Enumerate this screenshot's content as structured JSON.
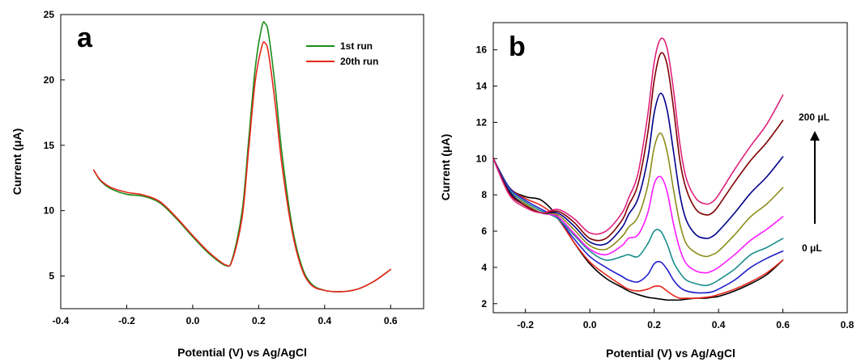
{
  "chart_data": [
    {
      "type": "line",
      "panel_label": "a",
      "xlabel": "Potential (V) vs Ag/AgCl",
      "ylabel": "Current (μA)",
      "xlim": [
        -0.4,
        0.7
      ],
      "ylim": [
        2.5,
        25
      ],
      "xticks": [
        -0.4,
        -0.2,
        0.0,
        0.2,
        0.4,
        0.6
      ],
      "xtick_labels": [
        "-0.4",
        "-0.2",
        "0.0",
        "0.2",
        "0.4",
        "0.6"
      ],
      "yticks": [
        5,
        10,
        15,
        20,
        25
      ],
      "ytick_labels": [
        "5",
        "10",
        "15",
        "20",
        "25"
      ],
      "grid": false,
      "legend_position": "top-right",
      "series": [
        {
          "name": "1st run",
          "color": "#1a8c1a",
          "x": [
            -0.3,
            -0.28,
            -0.25,
            -0.2,
            -0.15,
            -0.1,
            -0.05,
            0.0,
            0.05,
            0.1,
            0.12,
            0.15,
            0.17,
            0.19,
            0.21,
            0.22,
            0.23,
            0.25,
            0.27,
            0.3,
            0.33,
            0.36,
            0.4,
            0.45,
            0.5,
            0.55,
            0.6
          ],
          "y": [
            13.1,
            12.3,
            11.7,
            11.25,
            11.1,
            10.6,
            9.4,
            8.0,
            6.7,
            5.8,
            6.3,
            10.0,
            15.5,
            21.0,
            24.1,
            24.3,
            23.5,
            19.5,
            14.5,
            9.0,
            5.8,
            4.4,
            3.9,
            3.8,
            4.0,
            4.6,
            5.5
          ]
        },
        {
          "name": "20th run",
          "color": "#e8251b",
          "x": [
            -0.3,
            -0.28,
            -0.25,
            -0.2,
            -0.15,
            -0.1,
            -0.05,
            0.0,
            0.05,
            0.1,
            0.12,
            0.15,
            0.17,
            0.19,
            0.21,
            0.22,
            0.23,
            0.25,
            0.27,
            0.3,
            0.33,
            0.36,
            0.4,
            0.45,
            0.5,
            0.55,
            0.6
          ],
          "y": [
            13.1,
            12.35,
            11.8,
            11.4,
            11.2,
            10.7,
            9.5,
            8.1,
            6.8,
            5.85,
            6.2,
            9.5,
            14.8,
            20.0,
            22.6,
            22.8,
            22.0,
            18.2,
            13.6,
            8.6,
            5.6,
            4.3,
            3.9,
            3.8,
            4.0,
            4.6,
            5.5
          ]
        }
      ]
    },
    {
      "type": "line",
      "panel_label": "b",
      "xlabel": "Potential (V) vs Ag/AgCl",
      "ylabel": "Current (μA)",
      "xlim": [
        -0.3,
        0.8
      ],
      "ylim": [
        1.5,
        17.5
      ],
      "xticks": [
        -0.2,
        0.0,
        0.2,
        0.4,
        0.6,
        0.8
      ],
      "xtick_labels": [
        "-0.2",
        "0.0",
        "0.2",
        "0.4",
        "0.6",
        "0.8"
      ],
      "yticks": [
        2,
        4,
        6,
        8,
        10,
        12,
        14,
        16
      ],
      "ytick_labels": [
        "2",
        "4",
        "6",
        "8",
        "10",
        "12",
        "14",
        "16"
      ],
      "grid": false,
      "annotation_top": "200 μL",
      "annotation_bottom": "0 μL",
      "x": [
        -0.3,
        -0.25,
        -0.2,
        -0.15,
        -0.1,
        -0.05,
        0.0,
        0.05,
        0.1,
        0.12,
        0.15,
        0.18,
        0.2,
        0.22,
        0.24,
        0.26,
        0.28,
        0.3,
        0.33,
        0.36,
        0.38,
        0.4,
        0.45,
        0.5,
        0.55,
        0.6
      ],
      "series": [
        {
          "color": "#000000",
          "y": [
            10.0,
            8.4,
            7.9,
            7.7,
            6.8,
            5.4,
            4.2,
            3.4,
            2.9,
            2.7,
            2.5,
            2.35,
            2.3,
            2.25,
            2.2,
            2.2,
            2.2,
            2.25,
            2.3,
            2.3,
            2.35,
            2.4,
            2.7,
            3.1,
            3.6,
            4.4
          ]
        },
        {
          "color": "#e8251b",
          "y": [
            10.0,
            8.4,
            7.8,
            7.4,
            6.7,
            5.4,
            4.3,
            3.6,
            3.0,
            2.8,
            2.7,
            2.8,
            2.95,
            2.95,
            2.7,
            2.45,
            2.3,
            2.3,
            2.3,
            2.35,
            2.4,
            2.5,
            2.8,
            3.2,
            3.7,
            4.4
          ]
        },
        {
          "color": "#1f1fcc",
          "y": [
            10.0,
            8.4,
            7.7,
            7.2,
            6.7,
            5.6,
            4.6,
            4.0,
            3.5,
            3.3,
            3.2,
            3.6,
            4.2,
            4.3,
            3.9,
            3.3,
            2.9,
            2.7,
            2.6,
            2.6,
            2.65,
            2.8,
            3.3,
            4.0,
            4.5,
            4.9
          ]
        },
        {
          "color": "#1a8c8c",
          "y": [
            10.0,
            8.3,
            7.6,
            7.1,
            6.7,
            5.8,
            4.9,
            4.4,
            4.6,
            4.7,
            4.6,
            5.3,
            6.0,
            6.0,
            5.3,
            4.3,
            3.7,
            3.3,
            3.1,
            3.0,
            3.1,
            3.3,
            3.9,
            4.7,
            5.1,
            5.6
          ]
        },
        {
          "color": "#ff1aff",
          "y": [
            10.0,
            8.2,
            7.5,
            7.0,
            6.8,
            5.9,
            5.0,
            4.7,
            5.2,
            5.6,
            5.8,
            7.0,
            8.6,
            9.0,
            8.2,
            6.4,
            5.0,
            4.2,
            3.8,
            3.7,
            3.8,
            4.0,
            4.7,
            5.5,
            6.1,
            6.8
          ]
        },
        {
          "color": "#8c8c1a",
          "y": [
            10.0,
            8.2,
            7.5,
            7.0,
            6.9,
            6.1,
            5.2,
            5.0,
            5.7,
            6.2,
            6.8,
            8.5,
            10.6,
            11.4,
            10.4,
            8.3,
            6.4,
            5.3,
            4.8,
            4.6,
            4.7,
            4.9,
            5.8,
            6.8,
            7.5,
            8.4
          ]
        },
        {
          "color": "#00008b",
          "y": [
            10.0,
            8.2,
            7.4,
            7.0,
            7.0,
            6.3,
            5.4,
            5.3,
            6.2,
            6.9,
            7.8,
            10.0,
            12.5,
            13.6,
            12.7,
            10.4,
            8.0,
            6.6,
            5.8,
            5.6,
            5.7,
            6.0,
            7.0,
            8.1,
            9.0,
            10.1
          ]
        },
        {
          "color": "#800000",
          "y": [
            10.0,
            8.1,
            7.4,
            7.0,
            7.1,
            6.5,
            5.6,
            5.6,
            6.6,
            7.4,
            8.6,
            11.4,
            14.3,
            15.8,
            15.2,
            12.8,
            9.9,
            8.3,
            7.2,
            6.9,
            7.0,
            7.4,
            8.7,
            9.9,
            10.9,
            12.1
          ]
        },
        {
          "color": "#e0207a",
          "y": [
            10.0,
            8.0,
            7.3,
            7.0,
            7.2,
            6.7,
            5.9,
            6.0,
            7.0,
            7.8,
            9.2,
            12.4,
            15.3,
            16.6,
            16.1,
            13.8,
            10.8,
            8.9,
            7.8,
            7.5,
            7.6,
            8.0,
            9.4,
            10.7,
            11.9,
            13.5
          ]
        }
      ]
    }
  ]
}
